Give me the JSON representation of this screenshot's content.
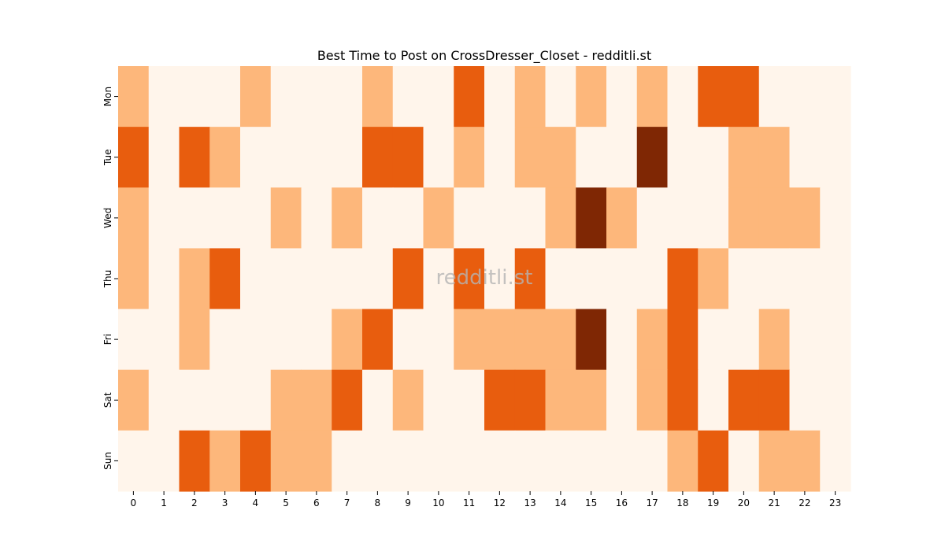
{
  "chart_data": {
    "type": "heatmap",
    "title": "Best Time to Post on CrossDresser_Closet - redditli.st",
    "xlabel": "",
    "ylabel": "",
    "x": [
      "0",
      "1",
      "2",
      "3",
      "4",
      "5",
      "6",
      "7",
      "8",
      "9",
      "10",
      "11",
      "12",
      "13",
      "14",
      "15",
      "16",
      "17",
      "18",
      "19",
      "20",
      "21",
      "22",
      "23"
    ],
    "y": [
      "Mon",
      "Tue",
      "Wed",
      "Thu",
      "Fri",
      "Sat",
      "Sun"
    ],
    "values": [
      [
        1,
        0,
        0,
        0,
        1,
        0,
        0,
        0,
        1,
        0,
        0,
        2,
        0,
        1,
        0,
        1,
        0,
        1,
        0,
        2,
        2,
        0,
        0,
        0
      ],
      [
        2,
        0,
        2,
        1,
        0,
        0,
        0,
        0,
        2,
        2,
        0,
        1,
        0,
        1,
        1,
        0,
        0,
        3,
        0,
        0,
        1,
        1,
        0,
        0
      ],
      [
        1,
        0,
        0,
        0,
        0,
        1,
        0,
        1,
        0,
        0,
        1,
        0,
        0,
        0,
        1,
        3,
        1,
        0,
        0,
        0,
        1,
        1,
        1,
        0
      ],
      [
        1,
        0,
        1,
        2,
        0,
        0,
        0,
        0,
        0,
        2,
        0,
        2,
        0,
        2,
        0,
        0,
        0,
        0,
        2,
        1,
        0,
        0,
        0,
        0
      ],
      [
        0,
        0,
        1,
        0,
        0,
        0,
        0,
        1,
        2,
        0,
        0,
        1,
        1,
        1,
        1,
        3,
        0,
        1,
        2,
        0,
        0,
        1,
        0,
        0
      ],
      [
        1,
        0,
        0,
        0,
        0,
        1,
        1,
        2,
        0,
        1,
        0,
        0,
        2,
        2,
        1,
        1,
        0,
        1,
        2,
        0,
        2,
        2,
        0,
        0
      ],
      [
        0,
        0,
        2,
        1,
        2,
        1,
        1,
        0,
        0,
        0,
        0,
        0,
        0,
        0,
        0,
        0,
        0,
        0,
        1,
        2,
        0,
        1,
        1,
        0
      ]
    ],
    "colors": [
      "#fff5eb",
      "#fdb77b",
      "#e85d0e",
      "#7f2704"
    ],
    "watermark": "redditli.st",
    "grid": false,
    "legend": "none"
  }
}
